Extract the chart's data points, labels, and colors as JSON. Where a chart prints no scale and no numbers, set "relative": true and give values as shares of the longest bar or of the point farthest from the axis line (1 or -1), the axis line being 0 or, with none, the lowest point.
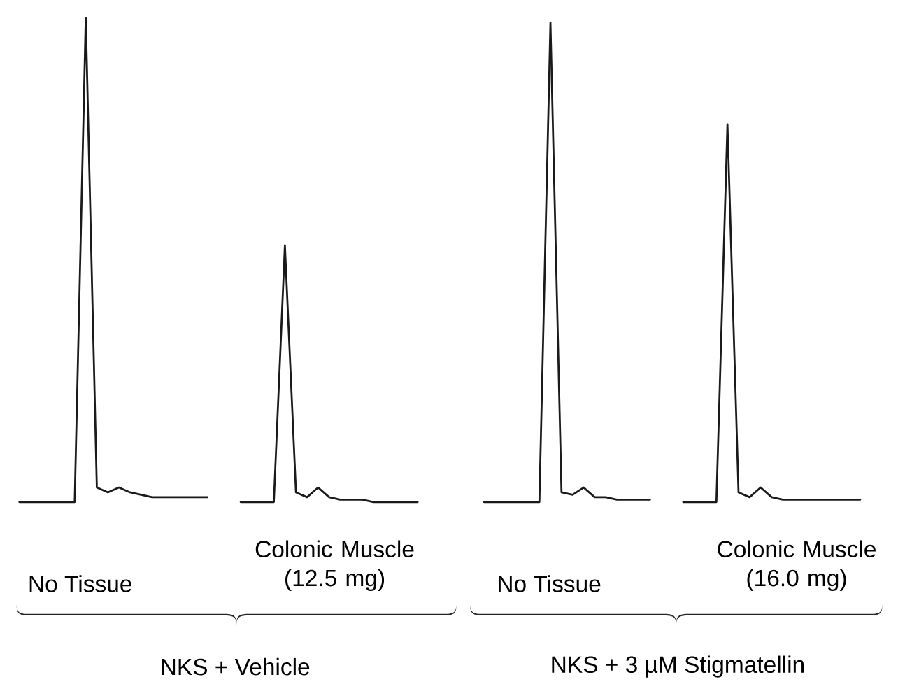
{
  "chart_data": {
    "type": "line",
    "relative": true,
    "line_style": "solid",
    "marker": "none",
    "categories": [
      null,
      null,
      null,
      null,
      null,
      null,
      null,
      null,
      null,
      null,
      null,
      null,
      null,
      null,
      null,
      null,
      null,
      null,
      null,
      null,
      null,
      null,
      null,
      null,
      null,
      null,
      null,
      null,
      null,
      null,
      null,
      null,
      null,
      null,
      null,
      null,
      null,
      null,
      null,
      null,
      null,
      null,
      null,
      null,
      null,
      null,
      null,
      null,
      null,
      null,
      null,
      null,
      null,
      null,
      null,
      null,
      null,
      null,
      null,
      null,
      null,
      null,
      null,
      null,
      null,
      null,
      null,
      null,
      null,
      null,
      null,
      null,
      null,
      null,
      null,
      null,
      null
    ],
    "series": [
      {
        "color": "#1a1a1a",
        "values": [
          0,
          0,
          0,
          0,
          0,
          0,
          1.0,
          0.03,
          0.02,
          0.03,
          0.02,
          0.015,
          0.01,
          0.01,
          0.01,
          0.01,
          0.01,
          0.01,
          null,
          null,
          null,
          null,
          null,
          null,
          null,
          null,
          null,
          null,
          null,
          null,
          null,
          null,
          null,
          null,
          null,
          null,
          null,
          null,
          null,
          null,
          null,
          null,
          null,
          null,
          null,
          null,
          null,
          null,
          null,
          null,
          null,
          null,
          null,
          null,
          null,
          null,
          null,
          null,
          null,
          null,
          null,
          null,
          null,
          null,
          null,
          null,
          null,
          null,
          null,
          null,
          null,
          null,
          null,
          null,
          null,
          null,
          null
        ]
      },
      {
        "color": "#1a1a1a",
        "values": [
          null,
          null,
          null,
          null,
          null,
          null,
          null,
          null,
          null,
          null,
          null,
          null,
          null,
          null,
          null,
          null,
          null,
          null,
          null,
          null,
          0,
          0,
          0,
          0,
          0.53,
          0.02,
          0.01,
          0.03,
          0.01,
          0.005,
          0.005,
          0.005,
          0,
          0,
          0,
          0,
          0,
          null,
          null,
          null,
          null,
          null,
          null,
          null,
          null,
          null,
          null,
          null,
          null,
          null,
          null,
          null,
          null,
          null,
          null,
          null,
          null,
          null,
          null,
          null,
          null,
          null,
          null,
          null,
          null,
          null,
          null,
          null,
          null,
          null,
          null,
          null,
          null,
          null,
          null,
          null,
          null
        ]
      },
      {
        "color": "#1a1a1a",
        "values": [
          null,
          null,
          null,
          null,
          null,
          null,
          null,
          null,
          null,
          null,
          null,
          null,
          null,
          null,
          null,
          null,
          null,
          null,
          null,
          null,
          null,
          null,
          null,
          null,
          null,
          null,
          null,
          null,
          null,
          null,
          null,
          null,
          null,
          null,
          null,
          null,
          null,
          null,
          null,
          null,
          null,
          null,
          0,
          0,
          0,
          0,
          0,
          0,
          0.99,
          0.02,
          0.015,
          0.03,
          0.01,
          0.01,
          0.005,
          0.005,
          0.005,
          0.005,
          null,
          null,
          null,
          null,
          null,
          null,
          null,
          null,
          null,
          null,
          null,
          null,
          null,
          null,
          null,
          null,
          null,
          null,
          null
        ]
      },
      {
        "color": "#1a1a1a",
        "values": [
          null,
          null,
          null,
          null,
          null,
          null,
          null,
          null,
          null,
          null,
          null,
          null,
          null,
          null,
          null,
          null,
          null,
          null,
          null,
          null,
          null,
          null,
          null,
          null,
          null,
          null,
          null,
          null,
          null,
          null,
          null,
          null,
          null,
          null,
          null,
          null,
          null,
          null,
          null,
          null,
          null,
          null,
          null,
          null,
          null,
          null,
          null,
          null,
          null,
          null,
          null,
          null,
          null,
          null,
          null,
          null,
          null,
          null,
          null,
          null,
          0,
          0,
          0,
          0,
          0.78,
          0.02,
          0.01,
          0.03,
          0.01,
          0.005,
          0.005,
          0.005,
          0.005,
          0.005,
          0.005,
          0.005,
          0.005
        ]
      }
    ],
    "annotations": [
      "No Tissue",
      "Colonic Muscle (12.5 mg)",
      "No Tissue",
      "Colonic Muscle (16.0 mg)",
      "NKS + Vehicle",
      "NKS + 3 µM Stigmatellin"
    ]
  }
}
